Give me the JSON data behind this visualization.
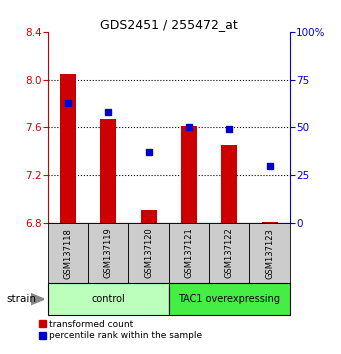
{
  "title": "GDS2451 / 255472_at",
  "samples": [
    "GSM137118",
    "GSM137119",
    "GSM137120",
    "GSM137121",
    "GSM137122",
    "GSM137123"
  ],
  "red_values": [
    8.05,
    7.67,
    6.91,
    7.61,
    7.45,
    6.81
  ],
  "blue_values": [
    63,
    58,
    37,
    50,
    49,
    30
  ],
  "ylim_left": [
    6.8,
    8.4
  ],
  "ylim_right": [
    0,
    100
  ],
  "yticks_left": [
    6.8,
    7.2,
    7.6,
    8.0,
    8.4
  ],
  "yticks_right": [
    0,
    25,
    50,
    75,
    100
  ],
  "groups": [
    {
      "label": "control",
      "start": 0,
      "end": 3,
      "color": "#bbffbb"
    },
    {
      "label": "TAC1 overexpressing",
      "start": 3,
      "end": 6,
      "color": "#44ee44"
    }
  ],
  "legend_red": "transformed count",
  "legend_blue": "percentile rank within the sample",
  "strain_label": "strain",
  "bar_bottom": 6.8,
  "bar_color": "#cc0000",
  "dot_color": "#0000cc",
  "left_axis_color": "#cc0000",
  "right_axis_color": "#0000cc",
  "grid_yticks": [
    7.2,
    7.6,
    8.0
  ],
  "bar_width": 0.4
}
